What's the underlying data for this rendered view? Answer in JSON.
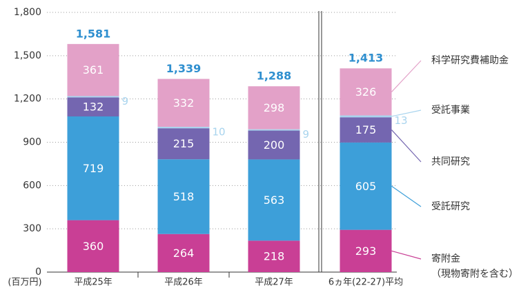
{
  "chart_data": {
    "type": "stacked_bar",
    "unit_label": "(百万円)",
    "categories": [
      "平成25年",
      "平成26年",
      "平成27年",
      "6ヵ年(22-27)平均"
    ],
    "series": [
      {
        "name": "寄附金\n（現物寄附を含む）",
        "color": "#c93f95",
        "values": [
          360,
          264,
          218,
          293
        ]
      },
      {
        "name": "受託研究",
        "color": "#3d9fd9",
        "values": [
          719,
          518,
          563,
          605
        ]
      },
      {
        "name": "共同研究",
        "color": "#7466b0",
        "values": [
          132,
          215,
          200,
          175
        ]
      },
      {
        "name": "受託事業",
        "color": "#a8d4ee",
        "values": [
          9,
          10,
          9,
          13
        ]
      },
      {
        "name": "科学研究費補助金",
        "color": "#e3a1c8",
        "values": [
          361,
          332,
          298,
          326
        ]
      }
    ],
    "totals": {
      "values": [
        1581,
        1339,
        1288,
        1413
      ],
      "value_labels": [
        "1,581",
        "1,339",
        "1,288",
        "1,413"
      ],
      "color": "#2f8fcf"
    },
    "ylim": [
      0,
      1800
    ],
    "yticks": [
      0,
      300,
      600,
      900,
      {
        "value": 1200,
        "label": "1,200"
      },
      {
        "value": 1500,
        "label": "1,500"
      },
      {
        "value": 1800,
        "label": "1,800"
      }
    ],
    "grid": true
  }
}
